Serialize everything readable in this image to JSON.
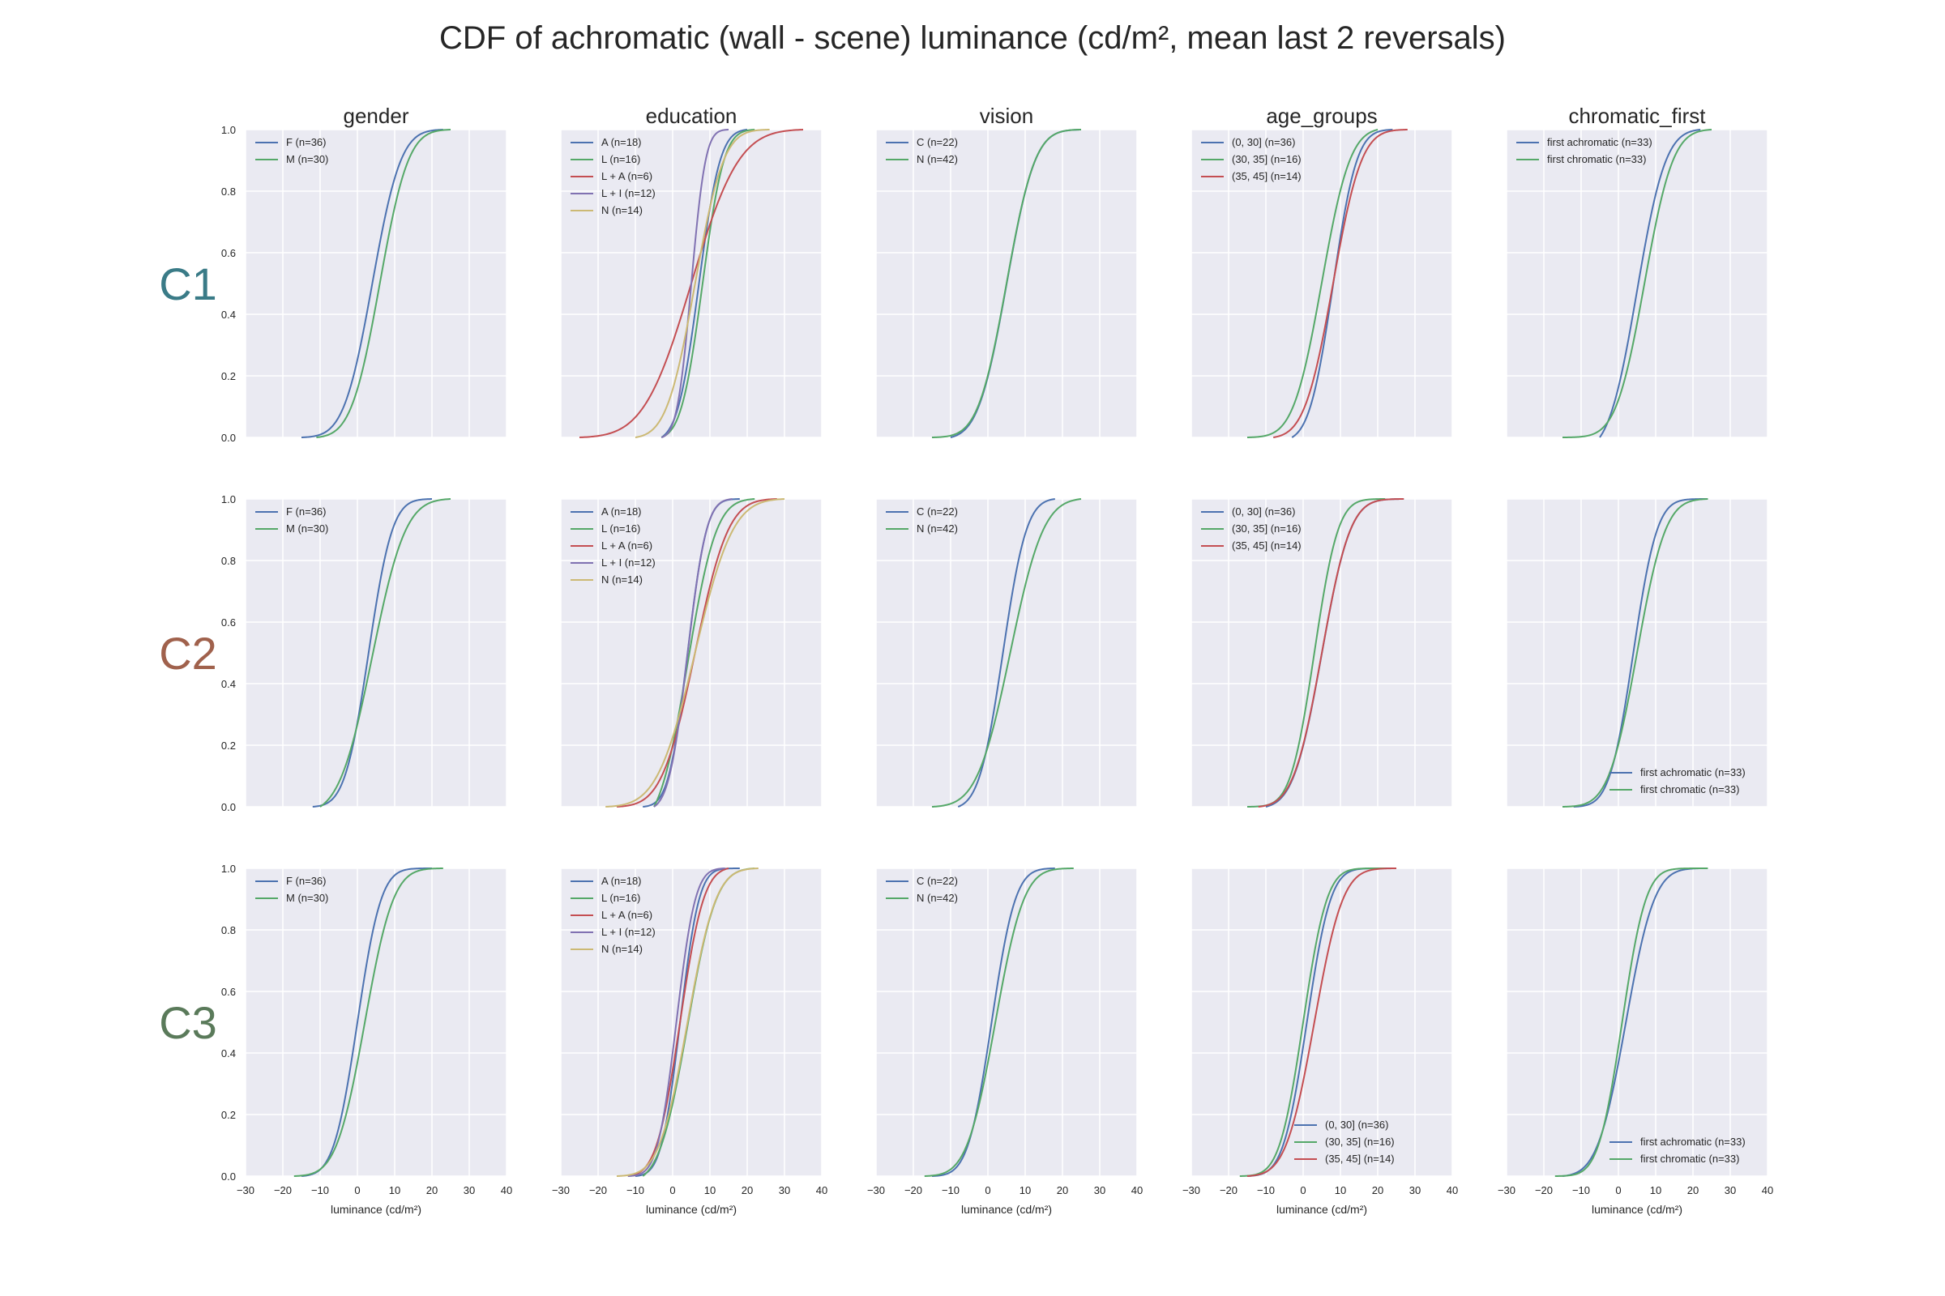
{
  "title": "CDF of achromatic (wall - scene) luminance (cd/m², mean last 2 reversals)",
  "colors": {
    "blue": "#4c72b0",
    "green": "#55a868",
    "red": "#c44e52",
    "purple": "#8172b2",
    "yellow": "#ccb974",
    "C1": "#3a7b87",
    "C2": "#a0614c",
    "C3": "#5a7a5a",
    "panel_bg": "#eaeaf2",
    "grid": "#ffffff"
  },
  "row_labels": [
    "C1",
    "C2",
    "C3"
  ],
  "column_titles": [
    "gender",
    "education",
    "vision",
    "age_groups",
    "chromatic_first"
  ],
  "axes": {
    "xlabel": "luminance (cd/m²)",
    "xlim": [
      -30,
      40
    ],
    "xticks": [
      "−30",
      "−20",
      "−10",
      "0",
      "10",
      "20",
      "30",
      "40"
    ],
    "ylim": [
      0,
      1
    ],
    "yticks": [
      "0.0",
      "0.2",
      "0.4",
      "0.6",
      "0.8",
      "1.0"
    ],
    "grid": true
  },
  "chart_data": [
    {
      "row": "C1",
      "col": "gender",
      "type": "line",
      "legend_loc": "upper-left",
      "series": [
        {
          "name": "F (n=36)",
          "color": "blue",
          "curve": {
            "mu": 4,
            "sigma": 6,
            "min": -15,
            "max": 23
          }
        },
        {
          "name": "M (n=30)",
          "color": "green",
          "curve": {
            "mu": 6,
            "sigma": 6,
            "min": -11,
            "max": 25
          }
        }
      ]
    },
    {
      "row": "C1",
      "col": "education",
      "type": "line",
      "legend_loc": "upper-left",
      "series": [
        {
          "name": "A (n=18)",
          "color": "blue",
          "curve": {
            "mu": 7,
            "sigma": 4.5,
            "min": -3,
            "max": 20
          }
        },
        {
          "name": "L (n=16)",
          "color": "green",
          "curve": {
            "mu": 8,
            "sigma": 4.5,
            "min": -3,
            "max": 22
          }
        },
        {
          "name": "L + A (n=6)",
          "color": "red",
          "curve": {
            "mu": 5,
            "sigma": 10,
            "min": -25,
            "max": 35
          }
        },
        {
          "name": "L + I (n=12)",
          "color": "purple",
          "curve": {
            "mu": 5,
            "sigma": 3,
            "min": -3,
            "max": 15
          }
        },
        {
          "name": "N (n=14)",
          "color": "yellow",
          "curve": {
            "mu": 6,
            "sigma": 6,
            "min": -10,
            "max": 26
          }
        }
      ]
    },
    {
      "row": "C1",
      "col": "vision",
      "type": "line",
      "legend_loc": "upper-left",
      "series": [
        {
          "name": "C (n=22)",
          "color": "blue",
          "curve": {
            "mu": 5,
            "sigma": 6,
            "min": -10,
            "max": 25
          }
        },
        {
          "name": "N (n=42)",
          "color": "green",
          "curve": {
            "mu": 5,
            "sigma": 6,
            "min": -15,
            "max": 25
          }
        }
      ]
    },
    {
      "row": "C1",
      "col": "age_groups",
      "type": "line",
      "legend_loc": "upper-left",
      "series": [
        {
          "name": "(0, 30] (n=36)",
          "color": "blue",
          "curve": {
            "mu": 8,
            "sigma": 5,
            "min": -3,
            "max": 24
          }
        },
        {
          "name": "(30, 35] (n=16)",
          "color": "green",
          "curve": {
            "mu": 5,
            "sigma": 6,
            "min": -15,
            "max": 20
          }
        },
        {
          "name": "(35, 45] (n=14)",
          "color": "red",
          "curve": {
            "mu": 8,
            "sigma": 6,
            "min": -8,
            "max": 28
          }
        }
      ]
    },
    {
      "row": "C1",
      "col": "chromatic_first",
      "type": "line",
      "legend_loc": "upper-left",
      "series": [
        {
          "name": "first achromatic (n=33)",
          "color": "blue",
          "curve": {
            "mu": 5,
            "sigma": 6,
            "min": -5,
            "max": 22
          }
        },
        {
          "name": "first chromatic (n=33)",
          "color": "green",
          "curve": {
            "mu": 7,
            "sigma": 6,
            "min": -15,
            "max": 25
          }
        }
      ]
    },
    {
      "row": "C2",
      "col": "gender",
      "type": "line",
      "legend_loc": "upper-left",
      "series": [
        {
          "name": "F (n=36)",
          "color": "blue",
          "curve": {
            "mu": 3,
            "sigma": 5,
            "min": -12,
            "max": 20
          }
        },
        {
          "name": "M (n=30)",
          "color": "green",
          "curve": {
            "mu": 4,
            "sigma": 7,
            "min": -10,
            "max": 25
          }
        }
      ]
    },
    {
      "row": "C2",
      "col": "education",
      "type": "line",
      "legend_loc": "upper-left",
      "series": [
        {
          "name": "A (n=18)",
          "color": "blue",
          "curve": {
            "mu": 4,
            "sigma": 4,
            "min": -8,
            "max": 18
          }
        },
        {
          "name": "L (n=16)",
          "color": "green",
          "curve": {
            "mu": 4,
            "sigma": 6,
            "min": -5,
            "max": 22
          }
        },
        {
          "name": "L + A (n=6)",
          "color": "red",
          "curve": {
            "mu": 6,
            "sigma": 7,
            "min": -15,
            "max": 28
          }
        },
        {
          "name": "L + I (n=12)",
          "color": "purple",
          "curve": {
            "mu": 4,
            "sigma": 4,
            "min": -5,
            "max": 16
          }
        },
        {
          "name": "N (n=14)",
          "color": "yellow",
          "curve": {
            "mu": 6,
            "sigma": 8,
            "min": -18,
            "max": 30
          }
        }
      ]
    },
    {
      "row": "C2",
      "col": "vision",
      "type": "line",
      "legend_loc": "upper-left",
      "series": [
        {
          "name": "C (n=22)",
          "color": "blue",
          "curve": {
            "mu": 4,
            "sigma": 5,
            "min": -8,
            "max": 18
          }
        },
        {
          "name": "N (n=42)",
          "color": "green",
          "curve": {
            "mu": 6,
            "sigma": 7,
            "min": -15,
            "max": 25
          }
        }
      ]
    },
    {
      "row": "C2",
      "col": "age_groups",
      "type": "line",
      "legend_loc": "upper-left",
      "series": [
        {
          "name": "(0, 30] (n=36)",
          "color": "blue",
          "curve": {
            "mu": 5,
            "sigma": 6,
            "min": -10,
            "max": 27
          }
        },
        {
          "name": "(30, 35] (n=16)",
          "color": "green",
          "curve": {
            "mu": 3,
            "sigma": 5,
            "min": -15,
            "max": 22
          }
        },
        {
          "name": "(35, 45] (n=14)",
          "color": "red",
          "curve": {
            "mu": 5,
            "sigma": 6,
            "min": -12,
            "max": 27
          }
        }
      ]
    },
    {
      "row": "C2",
      "col": "chromatic_first",
      "type": "line",
      "legend_loc": "lower-right",
      "series": [
        {
          "name": "first achromatic (n=33)",
          "color": "blue",
          "curve": {
            "mu": 4,
            "sigma": 5,
            "min": -12,
            "max": 24
          }
        },
        {
          "name": "first chromatic (n=33)",
          "color": "green",
          "curve": {
            "mu": 5,
            "sigma": 6,
            "min": -15,
            "max": 24
          }
        }
      ]
    },
    {
      "row": "C3",
      "col": "gender",
      "type": "line",
      "legend_loc": "upper-left",
      "series": [
        {
          "name": "F (n=36)",
          "color": "blue",
          "curve": {
            "mu": 0,
            "sigma": 5,
            "min": -15,
            "max": 20
          }
        },
        {
          "name": "M (n=30)",
          "color": "green",
          "curve": {
            "mu": 2,
            "sigma": 6,
            "min": -17,
            "max": 23
          }
        }
      ]
    },
    {
      "row": "C3",
      "col": "education",
      "type": "line",
      "legend_loc": "upper-left",
      "series": [
        {
          "name": "A (n=18)",
          "color": "blue",
          "curve": {
            "mu": 2,
            "sigma": 4,
            "min": -10,
            "max": 18
          }
        },
        {
          "name": "L (n=16)",
          "color": "green",
          "curve": {
            "mu": 4,
            "sigma": 6,
            "min": -8,
            "max": 22
          }
        },
        {
          "name": "L + A (n=6)",
          "color": "red",
          "curve": {
            "mu": 2,
            "sigma": 5,
            "min": -12,
            "max": 15
          }
        },
        {
          "name": "L + I (n=12)",
          "color": "purple",
          "curve": {
            "mu": 1,
            "sigma": 4,
            "min": -12,
            "max": 14
          }
        },
        {
          "name": "N (n=14)",
          "color": "yellow",
          "curve": {
            "mu": 4,
            "sigma": 6,
            "min": -15,
            "max": 23
          }
        }
      ]
    },
    {
      "row": "C3",
      "col": "vision",
      "type": "line",
      "legend_loc": "upper-left",
      "series": [
        {
          "name": "C (n=22)",
          "color": "blue",
          "curve": {
            "mu": 1,
            "sigma": 5,
            "min": -15,
            "max": 18
          }
        },
        {
          "name": "N (n=42)",
          "color": "green",
          "curve": {
            "mu": 2,
            "sigma": 6,
            "min": -17,
            "max": 23
          }
        }
      ]
    },
    {
      "row": "C3",
      "col": "age_groups",
      "type": "line",
      "legend_loc": "lower-right",
      "series": [
        {
          "name": "(0, 30] (n=36)",
          "color": "blue",
          "curve": {
            "mu": 1,
            "sigma": 5,
            "min": -15,
            "max": 25
          }
        },
        {
          "name": "(30, 35] (n=16)",
          "color": "green",
          "curve": {
            "mu": 0,
            "sigma": 5,
            "min": -17,
            "max": 22
          }
        },
        {
          "name": "(35, 45] (n=14)",
          "color": "red",
          "curve": {
            "mu": 3,
            "sigma": 6,
            "min": -15,
            "max": 25
          }
        }
      ]
    },
    {
      "row": "C3",
      "col": "chromatic_first",
      "type": "line",
      "legend_loc": "lower-right",
      "series": [
        {
          "name": "first achromatic (n=33)",
          "color": "blue",
          "curve": {
            "mu": 2,
            "sigma": 6,
            "min": -15,
            "max": 22
          }
        },
        {
          "name": "first chromatic (n=33)",
          "color": "green",
          "curve": {
            "mu": 1,
            "sigma": 5,
            "min": -17,
            "max": 24
          }
        }
      ]
    }
  ]
}
